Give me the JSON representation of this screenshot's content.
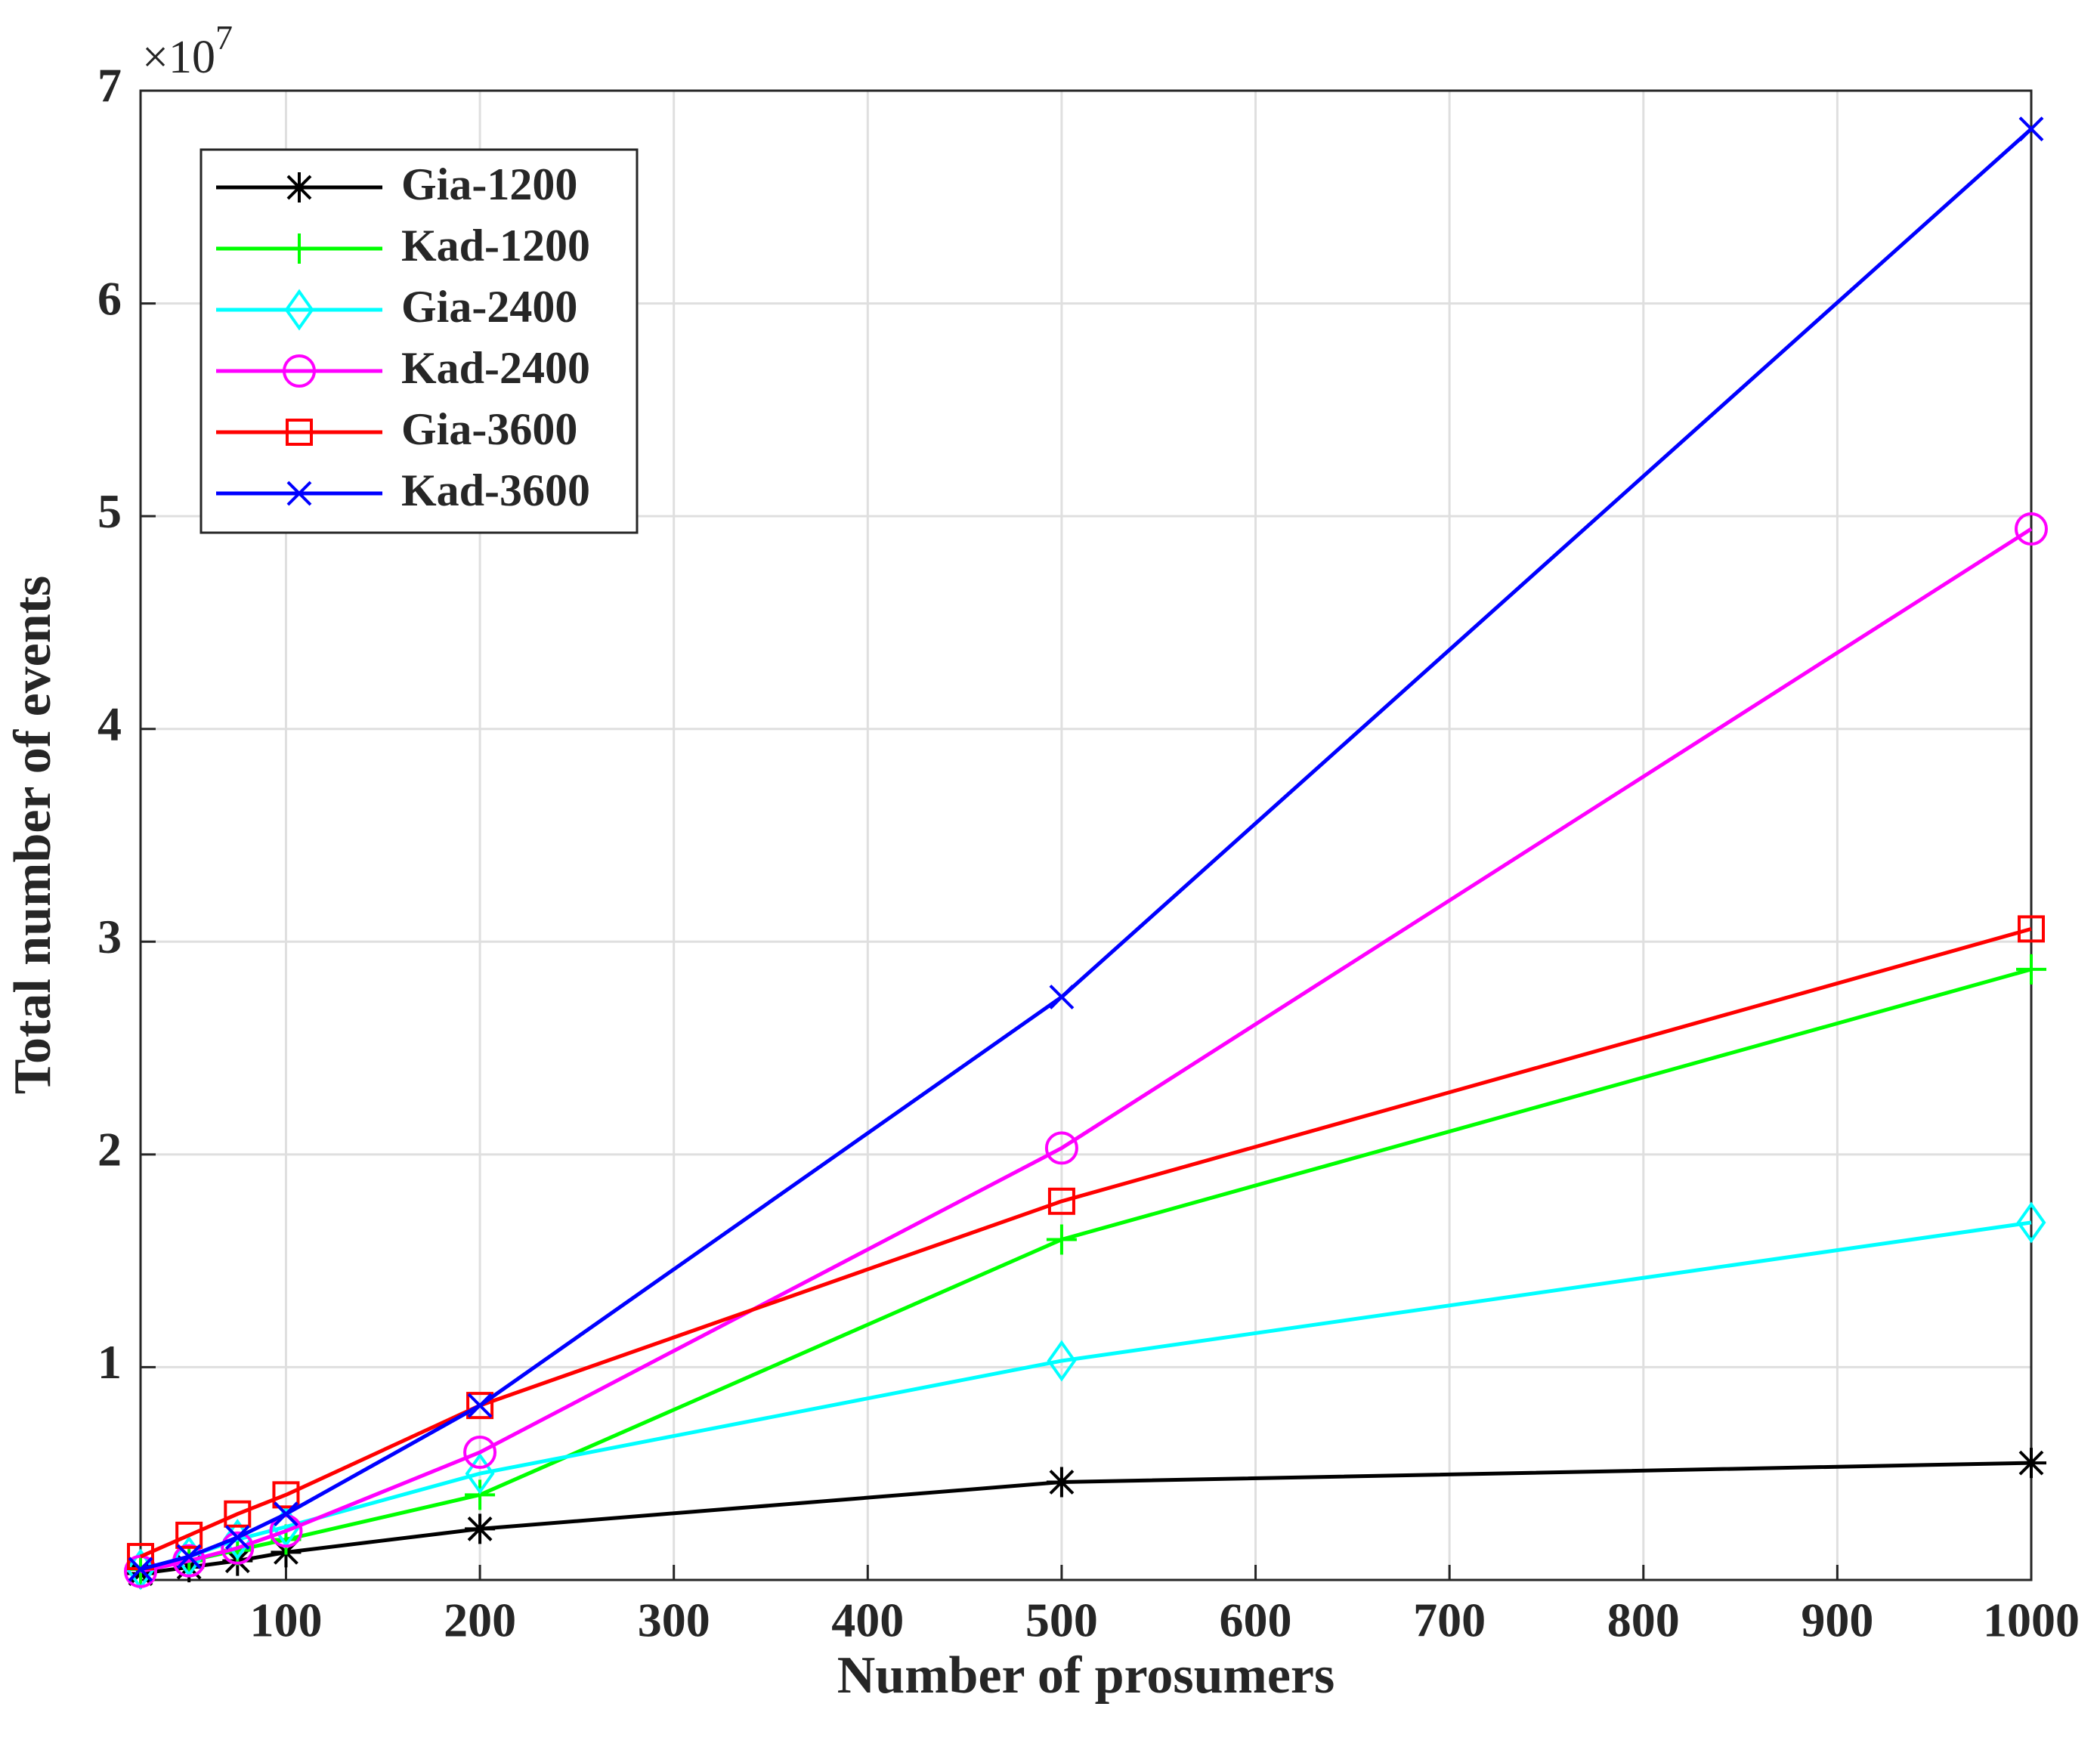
{
  "chart_data": {
    "type": "line",
    "xlabel": "Number of prosumers",
    "ylabel": "Total number of events",
    "y_scale_label": {
      "base": "×10",
      "exponent": "7"
    },
    "x": [
      25,
      50,
      75,
      100,
      200,
      500,
      1000
    ],
    "xlim": [
      25,
      1000
    ],
    "xticks": [
      100,
      200,
      300,
      400,
      500,
      600,
      700,
      800,
      900,
      1000
    ],
    "ylim": [
      0,
      7
    ],
    "yticks": [
      1,
      2,
      3,
      4,
      5,
      6,
      7
    ],
    "grid": true,
    "legend": "upper left",
    "series": [
      {
        "name": "Gia-1200",
        "color": "#000000",
        "marker": "star",
        "values": [
          0.03,
          0.06,
          0.09,
          0.13,
          0.24,
          0.46,
          0.55
        ]
      },
      {
        "name": "Kad-1200",
        "color": "#00ff00",
        "marker": "plus",
        "values": [
          0.05,
          0.09,
          0.14,
          0.19,
          0.4,
          1.6,
          2.87
        ]
      },
      {
        "name": "Gia-2400",
        "color": "#00ffff",
        "marker": "diamond",
        "values": [
          0.05,
          0.11,
          0.19,
          0.25,
          0.5,
          1.03,
          1.68
        ]
      },
      {
        "name": "Kad-2400",
        "color": "#ff00ff",
        "marker": "circle",
        "values": [
          0.04,
          0.09,
          0.15,
          0.23,
          0.6,
          2.03,
          4.94
        ]
      },
      {
        "name": "Gia-3600",
        "color": "#ff0000",
        "marker": "square",
        "values": [
          0.11,
          0.21,
          0.31,
          0.4,
          0.82,
          1.78,
          3.06
        ]
      },
      {
        "name": "Kad-3600",
        "color": "#0000ff",
        "marker": "x",
        "values": [
          0.05,
          0.11,
          0.2,
          0.31,
          0.82,
          2.74,
          6.82
        ]
      }
    ]
  }
}
